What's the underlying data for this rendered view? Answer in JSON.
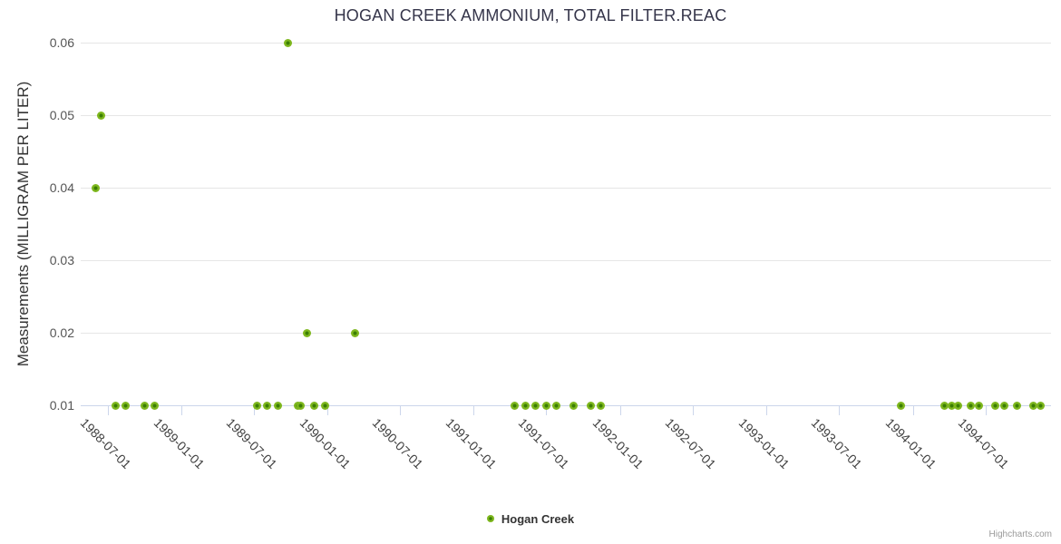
{
  "title": "HOGAN CREEK AMMONIUM, TOTAL FILTER.REAC",
  "credit": "Highcharts.com",
  "legend": {
    "series_label": "Hogan Creek"
  },
  "colors": {
    "marker_outer": "#7eb71e",
    "marker_core": "#3b7e04",
    "grid": "#e6e6e6",
    "axis_line": "#ccd6eb",
    "title_text": "#35354a",
    "label_text": "#404040",
    "credit_text": "#999999"
  },
  "chart_data": {
    "type": "scatter",
    "title": "HOGAN CREEK AMMONIUM, TOTAL FILTER.REAC",
    "xlabel": "",
    "ylabel": "Measurements (MILLIGRAM PER LITER)",
    "ylim": [
      0.01,
      0.06
    ],
    "yticks": [
      0.01,
      0.02,
      0.03,
      0.04,
      0.05,
      0.06
    ],
    "xticks": [
      "1988-07-01",
      "1989-01-01",
      "1989-07-01",
      "1990-01-01",
      "1990-07-01",
      "1991-01-01",
      "1991-07-01",
      "1992-01-01",
      "1992-07-01",
      "1993-01-01",
      "1993-07-01",
      "1994-01-01",
      "1994-07-01"
    ],
    "xrange": [
      "1988-04-25",
      "1994-12-12"
    ],
    "grid": "horizontal",
    "legend_position": "bottom-center",
    "series": [
      {
        "name": "Hogan Creek",
        "color": "#7eb71e",
        "points": [
          [
            "1988-06-01",
            0.04
          ],
          [
            "1988-06-15",
            0.05
          ],
          [
            "1988-07-22",
            0.01
          ],
          [
            "1988-08-16",
            0.01
          ],
          [
            "1988-10-01",
            0.01
          ],
          [
            "1988-10-27",
            0.01
          ],
          [
            "1989-07-10",
            0.01
          ],
          [
            "1989-08-03",
            0.01
          ],
          [
            "1989-08-30",
            0.01
          ],
          [
            "1989-09-24",
            0.06
          ],
          [
            "1989-10-18",
            0.01
          ],
          [
            "1989-10-26",
            0.01
          ],
          [
            "1989-11-10",
            0.02
          ],
          [
            "1989-11-28",
            0.01
          ],
          [
            "1989-12-27",
            0.01
          ],
          [
            "1990-03-11",
            0.02
          ],
          [
            "1991-04-14",
            0.01
          ],
          [
            "1991-05-11",
            0.01
          ],
          [
            "1991-06-05",
            0.01
          ],
          [
            "1991-07-01",
            0.01
          ],
          [
            "1991-07-27",
            0.01
          ],
          [
            "1991-09-08",
            0.01
          ],
          [
            "1991-10-21",
            0.01
          ],
          [
            "1991-11-15",
            0.01
          ],
          [
            "1993-12-03",
            0.01
          ],
          [
            "1994-03-21",
            0.01
          ],
          [
            "1994-04-08",
            0.01
          ],
          [
            "1994-04-24",
            0.01
          ],
          [
            "1994-05-26",
            0.01
          ],
          [
            "1994-06-15",
            0.01
          ],
          [
            "1994-07-26",
            0.01
          ],
          [
            "1994-08-17",
            0.01
          ],
          [
            "1994-09-18",
            0.01
          ],
          [
            "1994-10-29",
            0.01
          ],
          [
            "1994-11-16",
            0.01
          ]
        ]
      }
    ]
  }
}
